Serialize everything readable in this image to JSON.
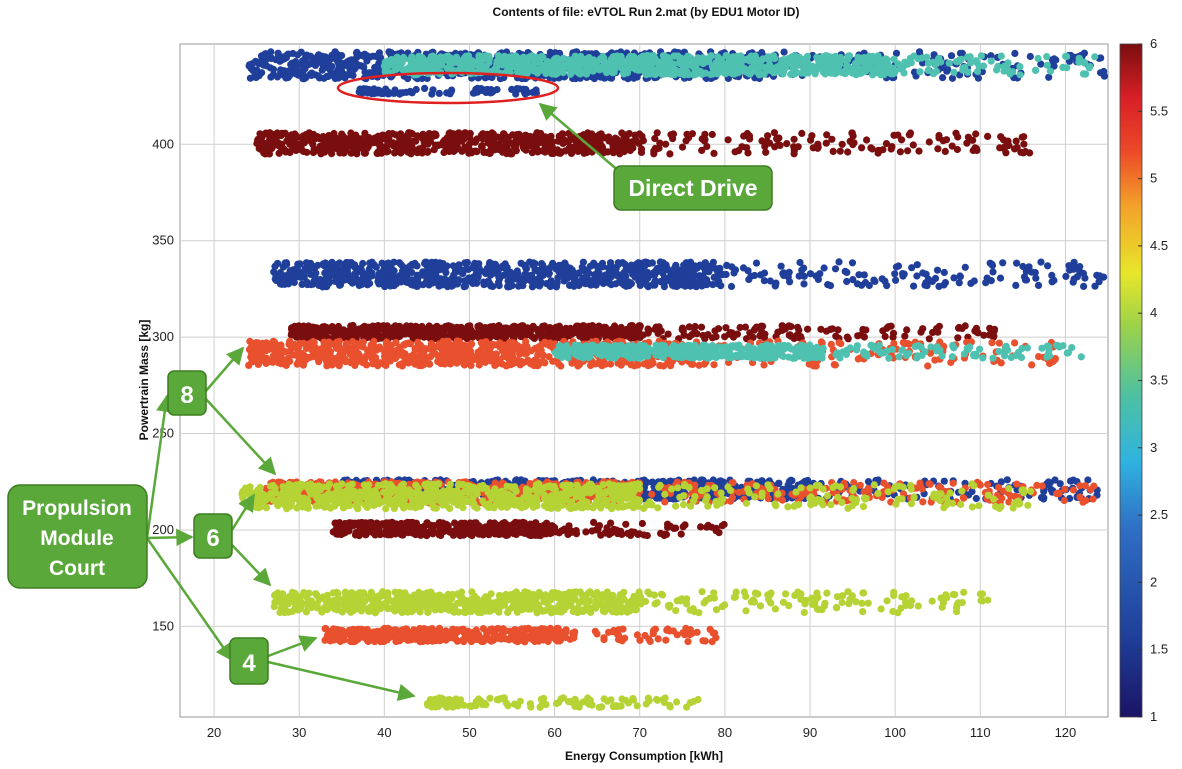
{
  "chart_data": {
    "type": "scatter",
    "title": "Contents of file: eVTOL Run 2.mat (by EDU1 Motor ID)",
    "xlabel": "Energy Consumption [kWh]",
    "ylabel": "Powertrain Mass [kg]",
    "xlim": [
      16,
      125
    ],
    "ylim": [
      103,
      452
    ],
    "x_ticks": [
      20,
      30,
      40,
      50,
      60,
      70,
      80,
      90,
      100,
      110,
      120
    ],
    "y_ticks": [
      150,
      200,
      250,
      300,
      350,
      400
    ],
    "grid": true,
    "colorbar": {
      "min": 1,
      "max": 6,
      "ticks": [
        1,
        1.5,
        2,
        2.5,
        3,
        3.5,
        4,
        4.5,
        5,
        5.5,
        6
      ],
      "colormap": "jet"
    },
    "clusters": [
      {
        "motor_id": 2,
        "color": "#1f3f9a",
        "mass_min": 434,
        "mass_max": 448,
        "x_start": 24,
        "x_dense_end": 85,
        "x_end": 125
      },
      {
        "motor_id": 3,
        "color": "#4fc1b0",
        "mass_min": 436,
        "mass_max": 446,
        "x_start": 40,
        "x_dense_end": 100,
        "x_end": 124
      },
      {
        "motor_id": 2,
        "color": "#1f3f9a",
        "mass_min": 426,
        "mass_max": 429,
        "x_start": 37,
        "x_dense_end": 40,
        "x_end": 58
      },
      {
        "motor_id": 6,
        "color": "#7a0e0e",
        "mass_min": 395,
        "mass_max": 406,
        "x_start": 25,
        "x_dense_end": 70,
        "x_end": 116
      },
      {
        "motor_id": 2,
        "color": "#1f3f9a",
        "mass_min": 326,
        "mass_max": 339,
        "x_start": 27,
        "x_dense_end": 80,
        "x_end": 125
      },
      {
        "motor_id": 6,
        "color": "#7a0e0e",
        "mass_min": 299,
        "mass_max": 306,
        "x_start": 29,
        "x_dense_end": 70,
        "x_end": 112
      },
      {
        "motor_id": 5,
        "color": "#e8502e",
        "mass_min": 285,
        "mass_max": 298,
        "x_start": 24,
        "x_dense_end": 75,
        "x_end": 120
      },
      {
        "motor_id": 3,
        "color": "#4fc1b0",
        "mass_min": 289,
        "mass_max": 296,
        "x_start": 60,
        "x_dense_end": 90,
        "x_end": 122
      },
      {
        "motor_id": 2,
        "color": "#1f3f9a",
        "mass_min": 216,
        "mass_max": 226,
        "x_start": 35,
        "x_dense_end": 90,
        "x_end": 124
      },
      {
        "motor_id": 5,
        "color": "#e8502e",
        "mass_min": 214,
        "mass_max": 225,
        "x_start": 26,
        "x_dense_end": 70,
        "x_end": 124
      },
      {
        "motor_id": 4,
        "color": "#b5d335",
        "mass_min": 211,
        "mass_max": 224,
        "x_start": 23,
        "x_dense_end": 70,
        "x_end": 116
      },
      {
        "motor_id": 6,
        "color": "#7a0e0e",
        "mass_min": 197,
        "mass_max": 204,
        "x_start": 34,
        "x_dense_end": 60,
        "x_end": 81
      },
      {
        "motor_id": 4,
        "color": "#b5d335",
        "mass_min": 157,
        "mass_max": 168,
        "x_start": 27,
        "x_dense_end": 70,
        "x_end": 111
      },
      {
        "motor_id": 5,
        "color": "#e8502e",
        "mass_min": 142,
        "mass_max": 149,
        "x_start": 33,
        "x_dense_end": 61,
        "x_end": 79
      },
      {
        "motor_id": 4,
        "color": "#b5d335",
        "mass_min": 108,
        "mass_max": 113,
        "x_start": 45,
        "x_dense_end": 48,
        "x_end": 77
      }
    ],
    "annotations": {
      "direct_drive": "Direct Drive",
      "propulsion_line1": "Propulsion",
      "propulsion_line2": "Module",
      "propulsion_line3": "Court",
      "count_8": "8",
      "count_6": "6",
      "count_4": "4"
    }
  }
}
